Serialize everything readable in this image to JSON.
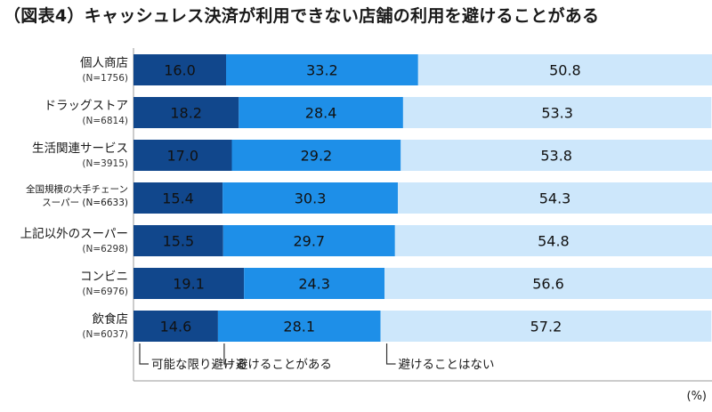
{
  "title": "（図表4）キャッシュレス決済が利用できない店舗の利用を避けることがある",
  "unit": "(%)",
  "colors": {
    "always_avoid": "#11478c",
    "sometimes_avoid": "#1e8fe8",
    "never_avoid": "#cde7fb",
    "axis": "#9a9a9a"
  },
  "chart_data": {
    "type": "bar",
    "orientation": "horizontal",
    "stacked": true,
    "xlim": [
      0,
      100
    ],
    "categories": [
      {
        "name": "個人商店",
        "n": "(N=1756)"
      },
      {
        "name": "ドラッグストア",
        "n": "(N=6814)"
      },
      {
        "name": "生活関連サービス",
        "n": "(N=3915)"
      },
      {
        "name": "全国規模の大手チェーンスーパー",
        "name_line1": "全国規模の大手チェーン",
        "name_line2": "スーパー",
        "n": "(N=6633)"
      },
      {
        "name": "上記以外のスーパー",
        "n": "(N=6298)"
      },
      {
        "name": "コンビニ",
        "n": "(N=6976)"
      },
      {
        "name": "飲食店",
        "n": "(N=6037)"
      }
    ],
    "series": [
      {
        "name": "可能な限り避ける",
        "values": [
          16.0,
          18.2,
          17.0,
          15.4,
          15.5,
          19.1,
          14.6
        ]
      },
      {
        "name": "避けることがある",
        "values": [
          33.2,
          28.4,
          29.2,
          30.3,
          29.7,
          24.3,
          28.1
        ]
      },
      {
        "name": "避けることはない",
        "values": [
          50.8,
          53.3,
          53.8,
          54.3,
          54.8,
          56.6,
          57.2
        ]
      }
    ]
  }
}
